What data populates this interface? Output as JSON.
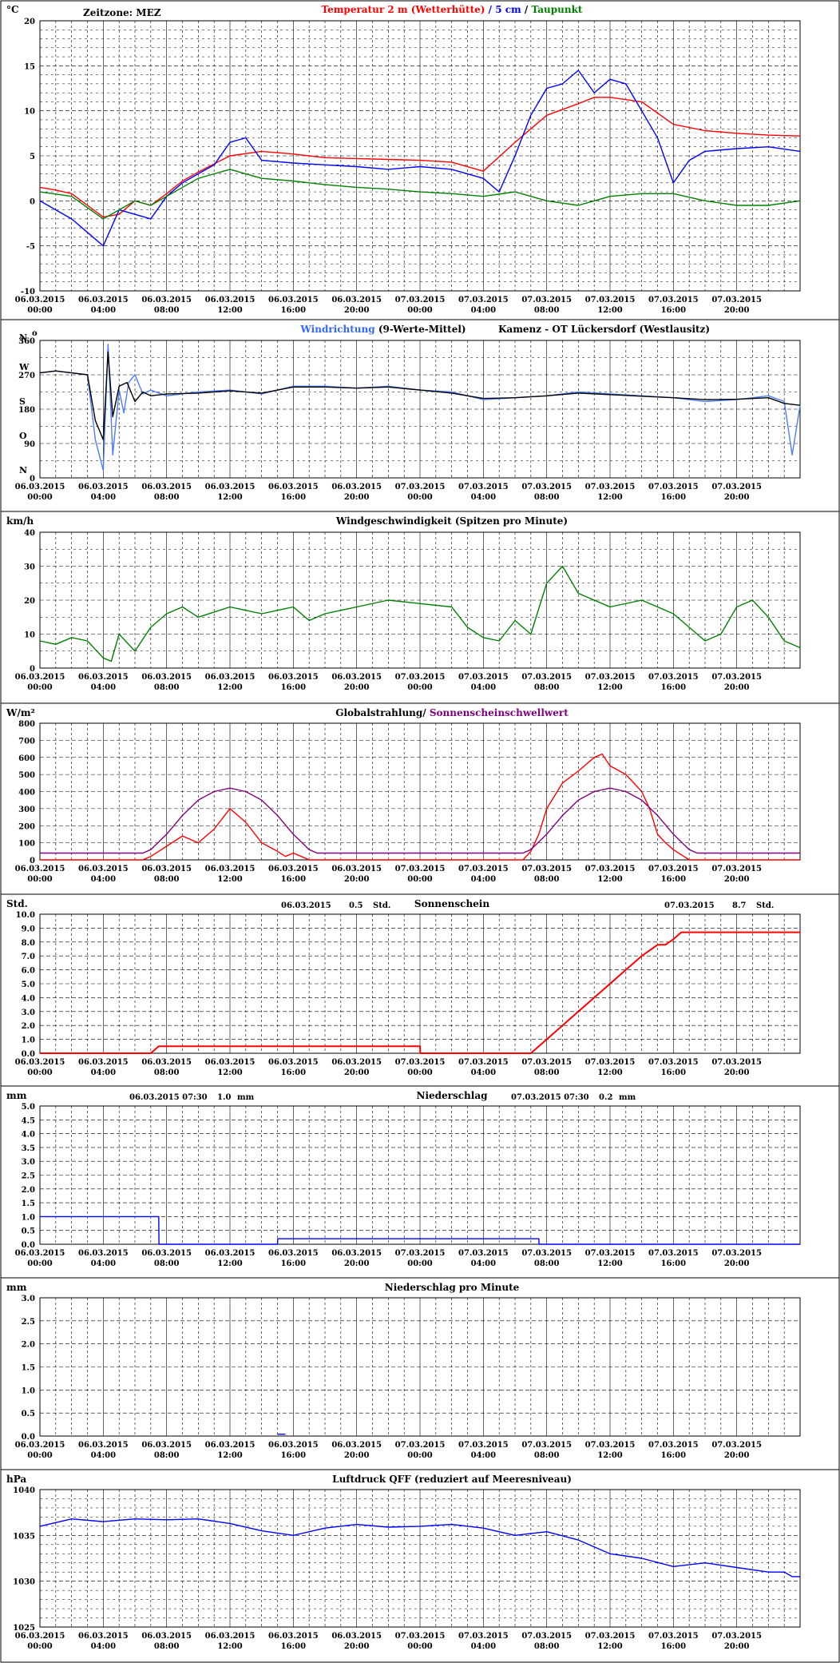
{
  "header": {
    "timezone": "Zeitzone: MEZ",
    "location": "Kamenz - OT Lückersdorf (Westlausitz)"
  },
  "time_ticks": [
    {
      "date": "06.03.2015",
      "time": "00:00"
    },
    {
      "date": "06.03.2015",
      "time": "04:00"
    },
    {
      "date": "06.03.2015",
      "time": "08:00"
    },
    {
      "date": "06.03.2015",
      "time": "12:00"
    },
    {
      "date": "06.03.2015",
      "time": "16:00"
    },
    {
      "date": "06.03.2015",
      "time": "20:00"
    },
    {
      "date": "07.03.2015",
      "time": "00:00"
    },
    {
      "date": "07.03.2015",
      "time": "04:00"
    },
    {
      "date": "07.03.2015",
      "time": "08:00"
    },
    {
      "date": "07.03.2015",
      "time": "12:00"
    },
    {
      "date": "07.03.2015",
      "time": "16:00"
    },
    {
      "date": "07.03.2015",
      "time": "20:00"
    }
  ],
  "colors": {
    "temp_air": "#ff0000",
    "temp_5cm": "#0000ff",
    "dewpoint": "#008000",
    "wind_dir_raw": "#4d7dff",
    "wind_dir_avg": "#000000",
    "wind_speed": "#008000",
    "radiation": "#ff0000",
    "threshold": "#800080",
    "sunshine": "#ff0000",
    "precip": "#0000ff",
    "pressure": "#0000ff"
  },
  "chart_data": [
    {
      "id": "temperature",
      "type": "line",
      "unit": "°C",
      "ylim": [
        -10,
        20
      ],
      "yticks": [
        -10,
        -5,
        0,
        5,
        10,
        15,
        20
      ],
      "title_parts": [
        {
          "text": "Temperatur 2 m (Wetterhütte)",
          "color": "#ff0000"
        },
        {
          "text": "  /  ",
          "color": "#0000ff"
        },
        {
          "text": "5 cm",
          "color": "#0000ff"
        },
        {
          "text": " / ",
          "color": "#000000"
        },
        {
          "text": "Taupunkt",
          "color": "#008000"
        }
      ],
      "series": [
        {
          "name": "Temperatur 2 m (Wetterhütte)",
          "color": "#ff0000",
          "x": [
            0,
            1,
            2,
            3,
            4,
            5,
            6,
            7,
            8,
            9,
            10,
            12,
            14,
            16,
            18,
            20,
            22,
            24,
            26,
            28,
            30,
            31,
            32,
            34,
            35,
            36,
            38,
            40,
            42,
            44,
            46,
            48
          ],
          "y": [
            1.5,
            1.2,
            0.8,
            -0.5,
            -1.8,
            -1.5,
            0.0,
            -0.5,
            0.8,
            2.2,
            3.2,
            5.0,
            5.5,
            5.2,
            4.8,
            4.7,
            4.6,
            4.5,
            4.3,
            3.3,
            6.5,
            8.0,
            9.5,
            10.8,
            11.5,
            11.5,
            11.0,
            8.5,
            7.8,
            7.5,
            7.3,
            7.2
          ]
        },
        {
          "name": "5 cm",
          "color": "#0000ff",
          "x": [
            0,
            1,
            2,
            3,
            4,
            5,
            6,
            7,
            8,
            9,
            10,
            11,
            12,
            13,
            14,
            16,
            18,
            20,
            22,
            24,
            26,
            28,
            29,
            30,
            31,
            32,
            33,
            34,
            35,
            36,
            37,
            38,
            39,
            40,
            41,
            42,
            44,
            46,
            48
          ],
          "y": [
            0.0,
            -1.0,
            -2.0,
            -3.5,
            -5.0,
            -1.0,
            -1.5,
            -2.0,
            0.5,
            2.0,
            3.0,
            4.0,
            6.5,
            7.0,
            4.5,
            4.2,
            4.0,
            3.8,
            3.5,
            3.8,
            3.5,
            2.5,
            1.0,
            5.0,
            9.5,
            12.5,
            13.0,
            14.5,
            12.0,
            13.5,
            13.0,
            10.0,
            7.0,
            2.0,
            4.5,
            5.5,
            5.8,
            6.0,
            5.5
          ]
        },
        {
          "name": "Taupunkt",
          "color": "#008000",
          "x": [
            0,
            2,
            4,
            5,
            6,
            7,
            8,
            10,
            12,
            14,
            16,
            18,
            20,
            22,
            24,
            26,
            28,
            30,
            31,
            32,
            34,
            36,
            38,
            40,
            42,
            44,
            46,
            48
          ],
          "y": [
            1.0,
            0.5,
            -2.0,
            -1.0,
            0.0,
            -0.5,
            0.5,
            2.5,
            3.5,
            2.5,
            2.2,
            1.8,
            1.5,
            1.3,
            1.0,
            0.8,
            0.5,
            1.0,
            0.5,
            0.0,
            -0.5,
            0.5,
            0.8,
            0.8,
            0.0,
            -0.5,
            -0.5,
            0.0
          ]
        }
      ]
    },
    {
      "id": "wind_direction",
      "type": "line",
      "ylim": [
        0,
        360
      ],
      "yticks": [
        0,
        90,
        180,
        270,
        360
      ],
      "compass_labels": [
        {
          "label": "N",
          "value": 360
        },
        {
          "label": "W",
          "value": 270
        },
        {
          "label": "S",
          "value": 180
        },
        {
          "label": "O",
          "value": 90
        },
        {
          "label": "N",
          "value": 0
        }
      ],
      "compass_top_right_mark": "o",
      "title_parts": [
        {
          "text": "Windrichtung",
          "color": "#3366ff"
        },
        {
          "text": " (9-Werte-Mittel)",
          "color": "#000000"
        }
      ],
      "series": [
        {
          "name": "Windrichtung",
          "color": "#4d7dff",
          "x": [
            0,
            1,
            2,
            3,
            3.5,
            4,
            4.3,
            4.6,
            5,
            5.3,
            5.6,
            6,
            6.5,
            7,
            8,
            10,
            12,
            14,
            16,
            18,
            20,
            22,
            24,
            26,
            28,
            30,
            32,
            34,
            36,
            38,
            40,
            42,
            44,
            46,
            47,
            47.5,
            48
          ],
          "y": [
            275,
            280,
            275,
            270,
            100,
            20,
            350,
            60,
            230,
            170,
            250,
            270,
            220,
            230,
            215,
            225,
            230,
            220,
            240,
            240,
            235,
            240,
            230,
            225,
            205,
            210,
            215,
            225,
            220,
            215,
            210,
            200,
            205,
            215,
            200,
            60,
            190
          ]
        },
        {
          "name": "9-Werte-Mittel",
          "color": "#000000",
          "x": [
            0,
            1,
            2,
            3,
            3.5,
            4,
            4.3,
            4.6,
            5,
            5.5,
            6,
            6.5,
            7,
            8,
            10,
            12,
            14,
            16,
            18,
            20,
            22,
            24,
            26,
            28,
            30,
            32,
            34,
            36,
            38,
            40,
            42,
            44,
            46,
            47,
            48
          ],
          "y": [
            275,
            280,
            275,
            270,
            150,
            100,
            330,
            160,
            240,
            250,
            200,
            225,
            215,
            220,
            222,
            228,
            222,
            238,
            238,
            235,
            238,
            230,
            222,
            208,
            210,
            215,
            222,
            218,
            214,
            210,
            205,
            206,
            210,
            195,
            190
          ]
        }
      ]
    },
    {
      "id": "wind_speed",
      "type": "line",
      "unit": "km/h",
      "ylim": [
        0,
        40
      ],
      "yticks": [
        0,
        10,
        20,
        30,
        40
      ],
      "title": "Windgeschwindigkeit (Spitzen pro Minute)",
      "series": [
        {
          "name": "Windgeschwindigkeit",
          "color": "#008000",
          "x": [
            0,
            1,
            2,
            3,
            4,
            4.5,
            5,
            6,
            7,
            8,
            9,
            10,
            12,
            14,
            16,
            17,
            18,
            20,
            22,
            24,
            26,
            27,
            28,
            29,
            30,
            31,
            32,
            33,
            34,
            35,
            36,
            38,
            40,
            41,
            42,
            43,
            44,
            45,
            46,
            47,
            48
          ],
          "y": [
            8,
            7,
            9,
            8,
            3,
            2,
            10,
            5,
            12,
            16,
            18,
            15,
            18,
            16,
            18,
            14,
            16,
            18,
            20,
            19,
            18,
            12,
            9,
            8,
            14,
            10,
            25,
            30,
            22,
            20,
            18,
            20,
            16,
            12,
            8,
            10,
            18,
            20,
            15,
            8,
            6
          ]
        }
      ]
    },
    {
      "id": "radiation",
      "type": "line",
      "unit": "W/m²",
      "ylim": [
        0,
        800
      ],
      "yticks": [
        0,
        100,
        200,
        300,
        400,
        500,
        600,
        700,
        800
      ],
      "title_parts": [
        {
          "text": "Globalstrahlung/ ",
          "color": "#000000"
        },
        {
          "text": "Sonnenscheinschwellwert",
          "color": "#800080"
        }
      ],
      "series": [
        {
          "name": "Globalstrahlung",
          "color": "#ff0000",
          "x": [
            0,
            6.5,
            7,
            7.5,
            8,
            9,
            10,
            11,
            12,
            13,
            14,
            15,
            15.5,
            16,
            16.5,
            17,
            24,
            30.5,
            31,
            31.5,
            32,
            33,
            34,
            35,
            35.5,
            36,
            37,
            38,
            38.5,
            39,
            39.5,
            40,
            41,
            48
          ],
          "y": [
            0,
            0,
            20,
            50,
            80,
            140,
            100,
            180,
            300,
            220,
            100,
            50,
            20,
            40,
            20,
            0,
            0,
            0,
            50,
            150,
            300,
            450,
            520,
            600,
            620,
            550,
            500,
            400,
            300,
            150,
            100,
            60,
            0,
            0
          ]
        },
        {
          "name": "Sonnenscheinschwellwert",
          "color": "#800080",
          "x": [
            0,
            6.5,
            7,
            8,
            9,
            10,
            11,
            12,
            13,
            14,
            15,
            16,
            17,
            17.5,
            24,
            30.5,
            31,
            32,
            33,
            34,
            35,
            36,
            37,
            38,
            39,
            40,
            41,
            41.5,
            48
          ],
          "y": [
            40,
            40,
            60,
            150,
            260,
            350,
            400,
            420,
            400,
            350,
            260,
            150,
            60,
            40,
            40,
            40,
            60,
            150,
            260,
            350,
            400,
            420,
            400,
            350,
            260,
            150,
            60,
            40,
            40
          ]
        }
      ]
    },
    {
      "id": "sunshine",
      "type": "line",
      "unit": "Std.",
      "ylim": [
        0,
        10
      ],
      "yticks": [
        0.0,
        1.0,
        2.0,
        3.0,
        4.0,
        5.0,
        6.0,
        7.0,
        8.0,
        9.0,
        10.0
      ],
      "title": "Sonnenschein",
      "totals": [
        {
          "date": "06.03.2015",
          "value": "0.5",
          "unit": "Std."
        },
        {
          "date": "07.03.2015",
          "value": "8.7",
          "unit": "Std."
        }
      ],
      "series": [
        {
          "name": "Sonnenschein",
          "color": "#ff0000",
          "x": [
            0,
            7,
            7.5,
            24,
            24.02,
            31,
            32,
            33,
            34,
            35,
            36,
            37,
            38,
            39,
            39.5,
            40,
            40.5,
            41,
            48
          ],
          "y": [
            0,
            0,
            0.5,
            0.5,
            0,
            0,
            1.0,
            2.0,
            3.0,
            4.0,
            5.0,
            6.0,
            7.0,
            7.8,
            7.8,
            8.2,
            8.7,
            8.7,
            8.7
          ]
        }
      ]
    },
    {
      "id": "precipitation",
      "type": "line",
      "unit": "mm",
      "ylim": [
        0,
        5
      ],
      "yticks": [
        0.0,
        0.5,
        1.0,
        1.5,
        2.0,
        2.5,
        3.0,
        3.5,
        4.0,
        4.5,
        5.0
      ],
      "title": "Niederschlag",
      "totals": [
        {
          "date": "06.03.2015 07:30",
          "value": "1.0",
          "unit": "mm"
        },
        {
          "date": "07.03.2015 07:30",
          "value": "0.2",
          "unit": "mm"
        }
      ],
      "series": [
        {
          "name": "Niederschlag",
          "color": "#0000ff",
          "x": [
            0,
            7.5,
            7.52,
            15,
            15.02,
            31.5,
            31.52,
            48
          ],
          "y": [
            1.0,
            1.0,
            0.0,
            0.0,
            0.2,
            0.2,
            0.0,
            0.0
          ]
        }
      ]
    },
    {
      "id": "precipitation_minute",
      "type": "line",
      "unit": "mm",
      "ylim": [
        0,
        3
      ],
      "yticks": [
        0.0,
        0.5,
        1.0,
        1.5,
        2.0,
        2.5,
        3.0
      ],
      "title": "Niederschlag pro Minute",
      "series": [
        {
          "name": "Niederschlag pro Minute",
          "color": "#0000ff",
          "x": [
            15,
            15.5
          ],
          "y": [
            0.04,
            0.04
          ]
        }
      ]
    },
    {
      "id": "pressure",
      "type": "line",
      "unit": "hPa",
      "ylim": [
        1025,
        1040
      ],
      "yticks": [
        1025,
        1030,
        1035,
        1040
      ],
      "title": "Luftdruck QFF (reduziert auf Meeresniveau)",
      "series": [
        {
          "name": "Luftdruck QFF",
          "color": "#0000ff",
          "x": [
            0,
            2,
            4,
            6,
            8,
            10,
            12,
            14,
            16,
            18,
            20,
            22,
            24,
            26,
            28,
            30,
            32,
            34,
            36,
            38,
            40,
            42,
            44,
            46,
            47,
            47.5,
            48
          ],
          "y": [
            1036.0,
            1036.8,
            1036.5,
            1036.8,
            1036.7,
            1036.8,
            1036.3,
            1035.5,
            1035.0,
            1035.8,
            1036.2,
            1035.9,
            1036.0,
            1036.2,
            1035.8,
            1035.0,
            1035.4,
            1034.5,
            1033.0,
            1032.5,
            1031.6,
            1032.0,
            1031.5,
            1031.0,
            1031.0,
            1030.5,
            1030.5
          ]
        }
      ]
    }
  ]
}
